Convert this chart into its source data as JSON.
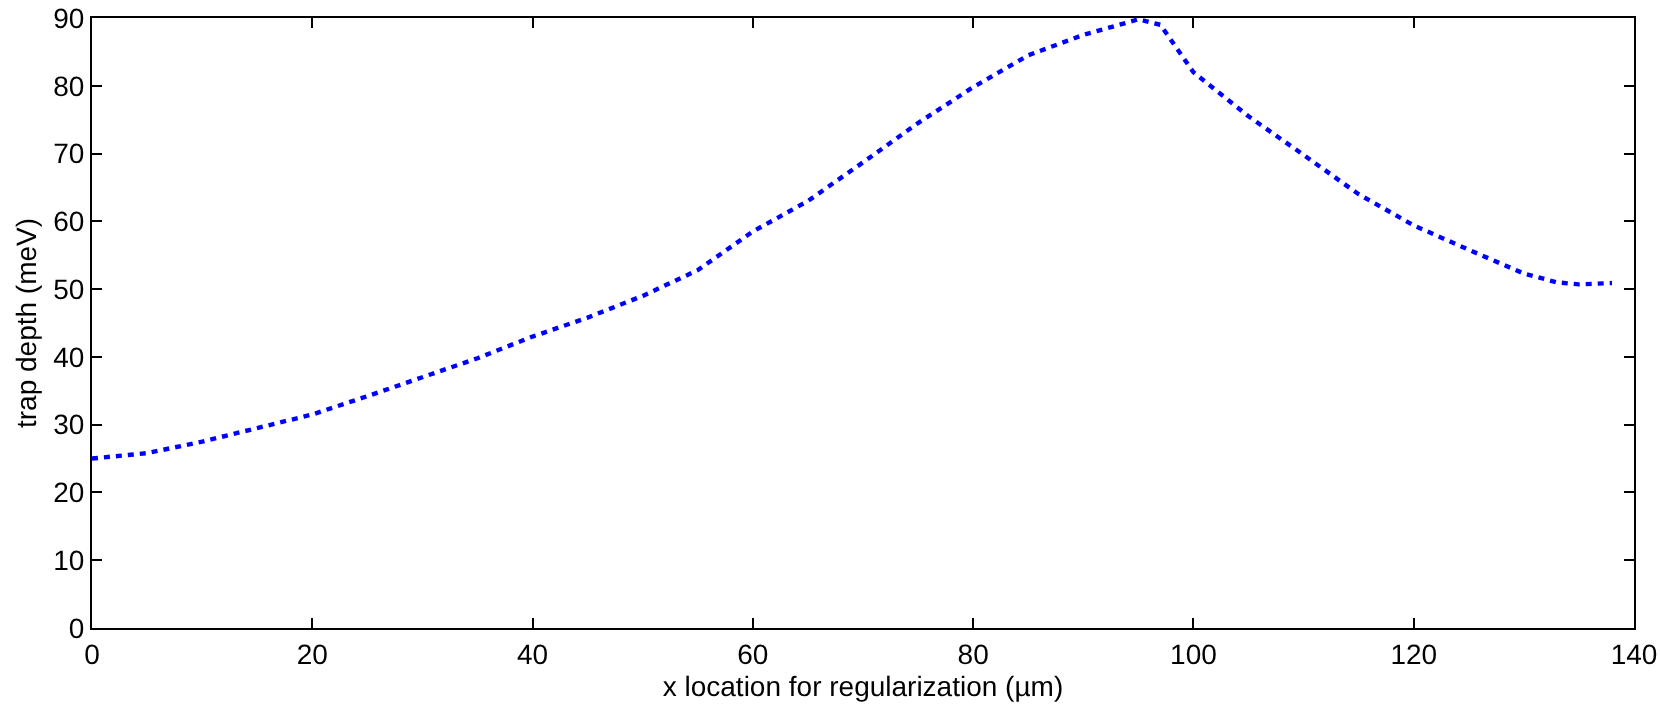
{
  "chart_data": {
    "type": "line",
    "xlabel": "x location for regularization (µm)",
    "ylabel": "trap depth (meV)",
    "x": [
      0,
      5,
      10,
      15,
      20,
      25,
      30,
      35,
      40,
      45,
      50,
      55,
      60,
      65,
      70,
      75,
      80,
      85,
      90,
      95,
      97,
      100,
      105,
      110,
      115,
      120,
      125,
      130,
      133,
      135,
      138
    ],
    "series": [
      {
        "color": "#0000ff",
        "values": [
          25,
          25.8,
          27.5,
          29.5,
          31.5,
          34.2,
          37,
          39.8,
          43,
          45.8,
          49,
          52.8,
          58.5,
          63,
          68.7,
          74.5,
          79.8,
          84.5,
          87.5,
          89.8,
          89,
          82,
          75.5,
          69.8,
          64,
          59.4,
          55.8,
          52.3,
          51,
          50.7,
          50.9
        ]
      }
    ],
    "xlim": [
      0,
      140
    ],
    "xticks": [
      0,
      20,
      40,
      60,
      80,
      100,
      120,
      140
    ],
    "ylim": [
      0,
      90
    ],
    "yticks": [
      0,
      10,
      20,
      30,
      40,
      50,
      60,
      70,
      80,
      90
    ],
    "grid": false,
    "marker": "none",
    "line_style": "dotted"
  }
}
